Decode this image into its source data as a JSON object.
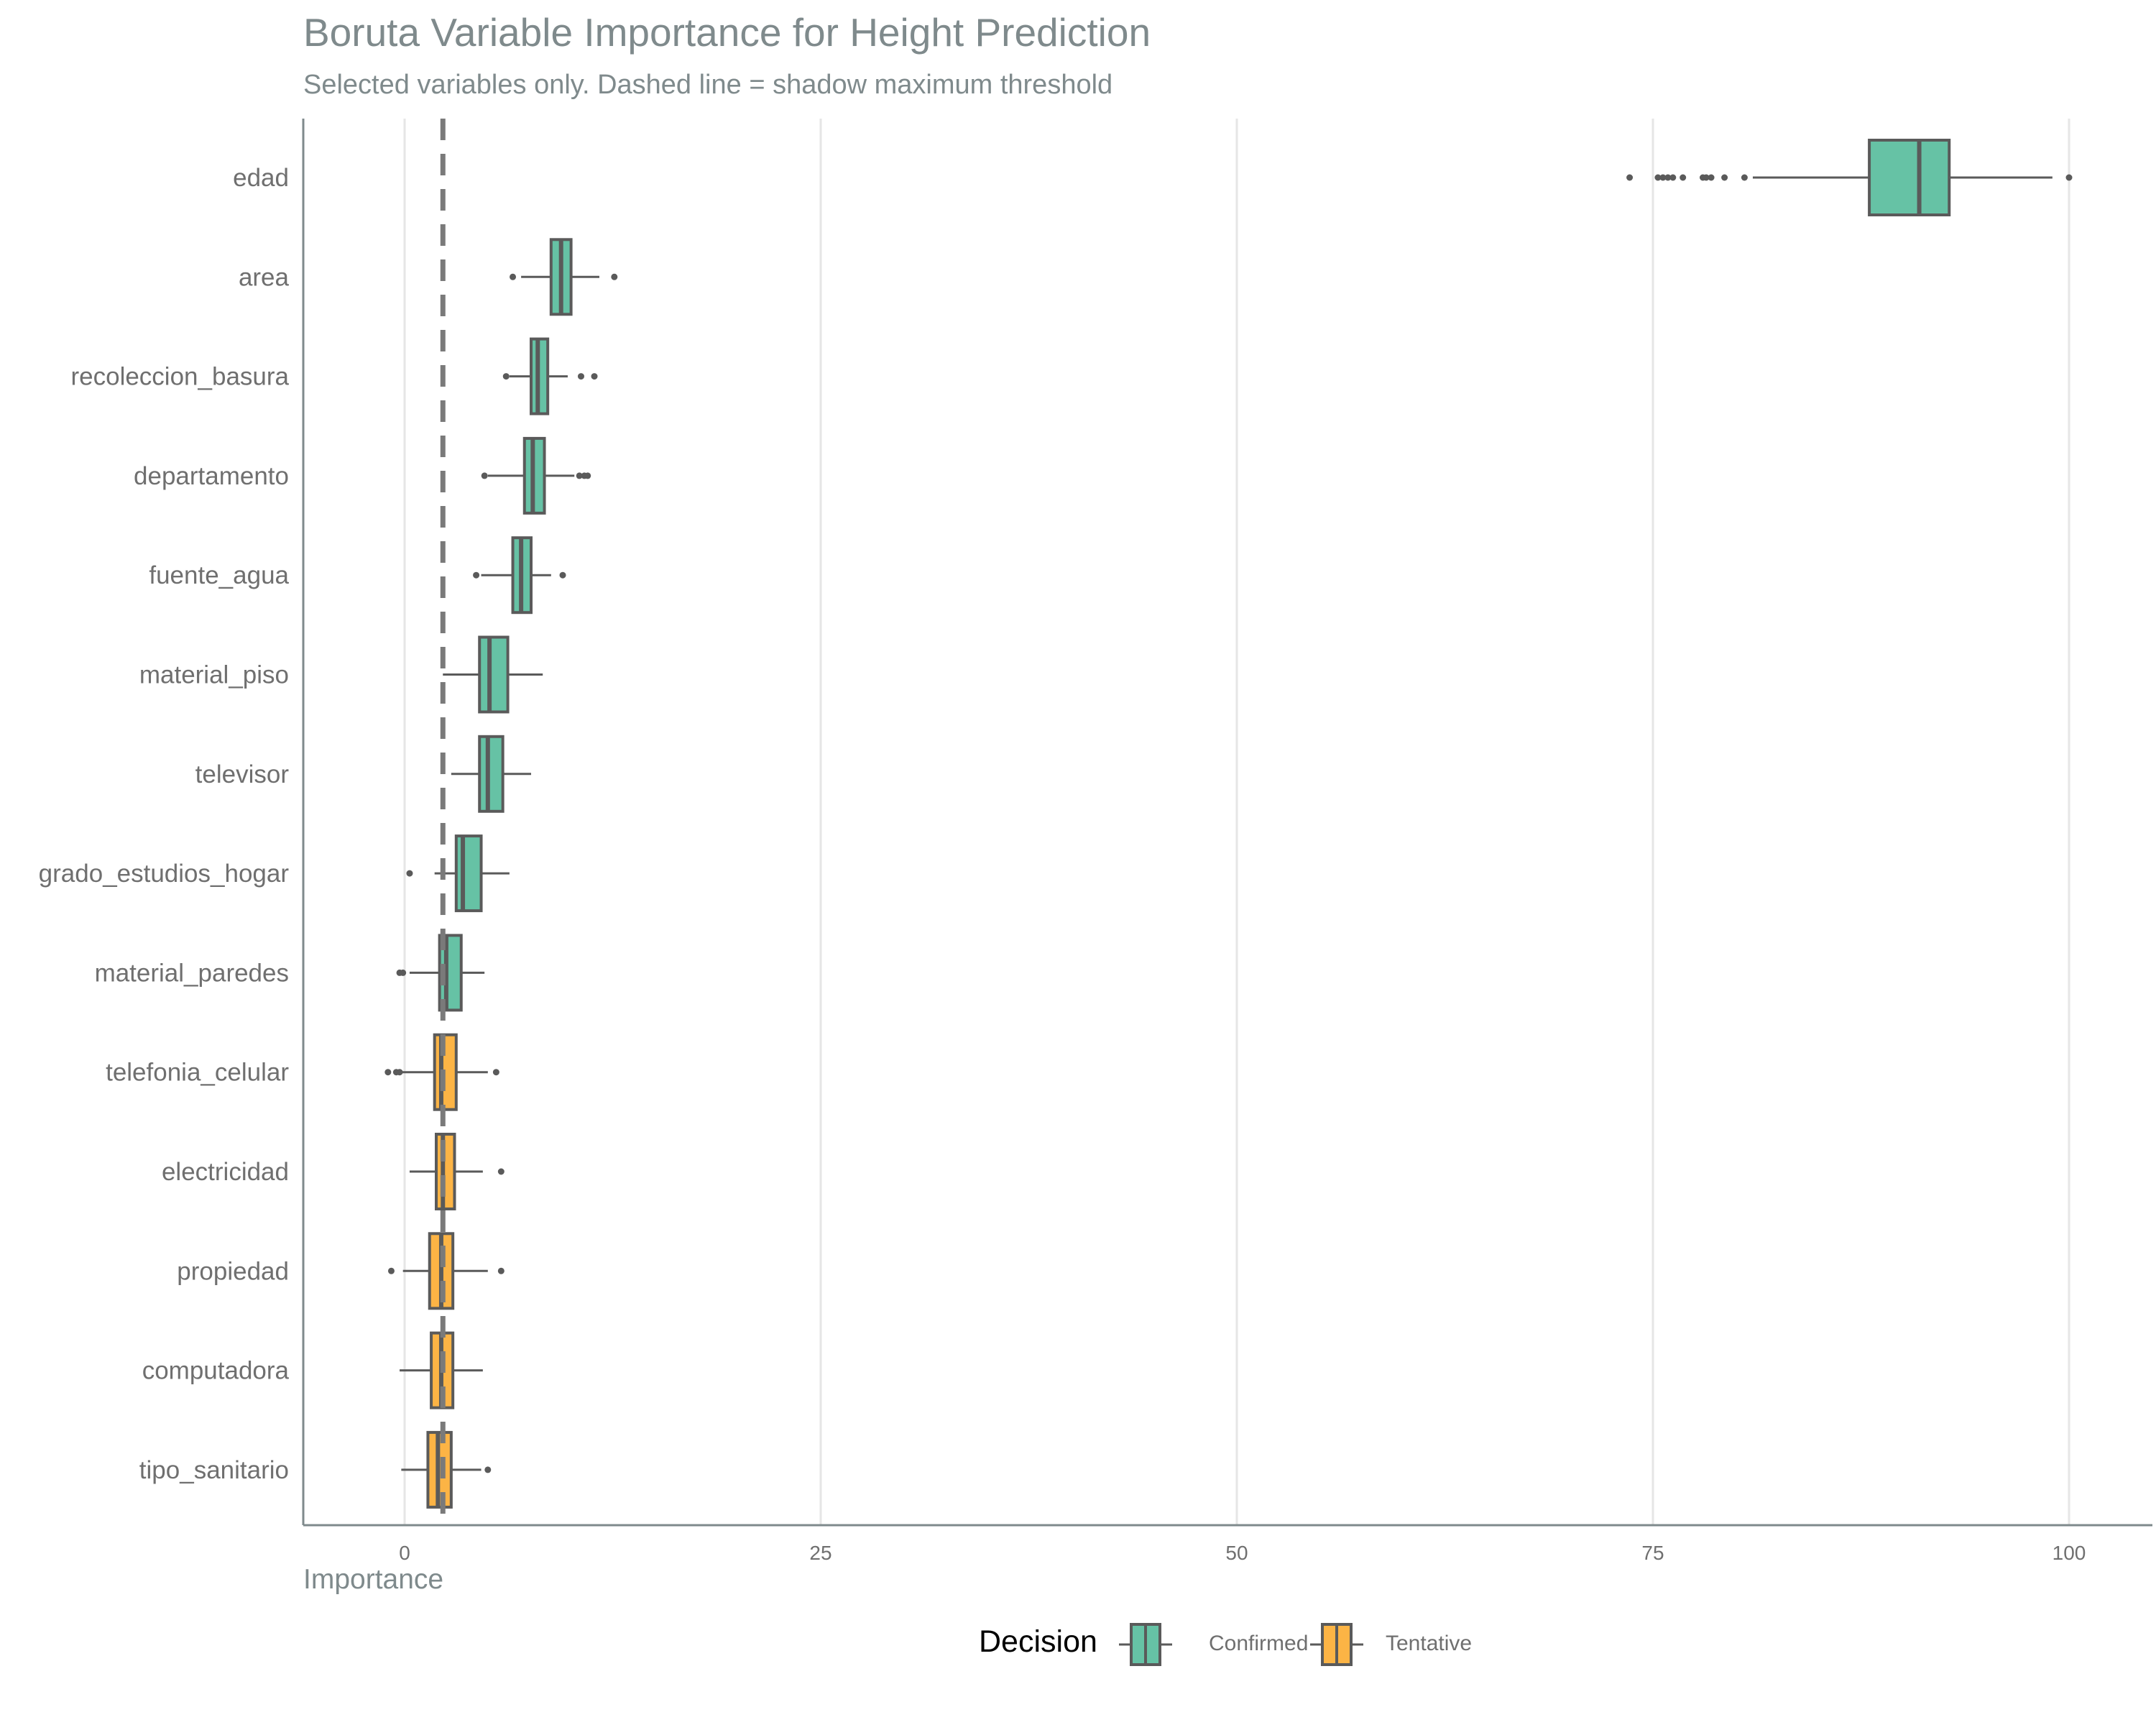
{
  "chart_data": {
    "type": "boxplot",
    "orientation": "horizontal",
    "title": "Boruta Variable Importance for Height Prediction",
    "subtitle": "Selected variables only. Dashed line = shadow maximum threshold",
    "xlabel": "Importance",
    "ylabel": "",
    "xlim": [
      -6,
      105
    ],
    "xticks": [
      0,
      25,
      50,
      75,
      100
    ],
    "grid": "vertical major",
    "legend": {
      "title": "Decision",
      "position": "bottom",
      "entries": [
        "Confirmed",
        "Tentative"
      ]
    },
    "colors": {
      "Confirmed": "#66c2a5",
      "Tentative": "#fcb445",
      "outline": "#5a5a5a",
      "grid": "#e6e6e6",
      "axis": "#7f8a8c"
    },
    "threshold": 2.3,
    "variables": [
      {
        "name": "edad",
        "decision": "Confirmed",
        "whisker_low": 81.0,
        "q1": 88.0,
        "median": 91.0,
        "q3": 92.8,
        "whisker_high": 99.0,
        "outliers": [
          73.6,
          75.3,
          75.6,
          75.9,
          76.2,
          76.8,
          78.0,
          78.2,
          78.5,
          79.3,
          80.5,
          100.0
        ]
      },
      {
        "name": "area",
        "decision": "Confirmed",
        "whisker_low": 7.0,
        "q1": 8.8,
        "median": 9.4,
        "q3": 10.0,
        "whisker_high": 11.7,
        "outliers": [
          6.5,
          12.6
        ]
      },
      {
        "name": "recoleccion_basura",
        "decision": "Confirmed",
        "whisker_low": 6.3,
        "q1": 7.6,
        "median": 8.0,
        "q3": 8.6,
        "whisker_high": 9.8,
        "outliers": [
          6.1,
          10.6,
          11.4
        ]
      },
      {
        "name": "departamento",
        "decision": "Confirmed",
        "whisker_low": 5.0,
        "q1": 7.2,
        "median": 7.7,
        "q3": 8.4,
        "whisker_high": 10.2,
        "outliers": [
          4.8,
          10.5,
          10.8,
          11.0
        ]
      },
      {
        "name": "fuente_agua",
        "decision": "Confirmed",
        "whisker_low": 4.6,
        "q1": 6.5,
        "median": 7.0,
        "q3": 7.6,
        "whisker_high": 8.8,
        "outliers": [
          4.3,
          9.5
        ]
      },
      {
        "name": "material_piso",
        "decision": "Confirmed",
        "whisker_low": 2.3,
        "q1": 4.5,
        "median": 5.1,
        "q3": 6.2,
        "whisker_high": 8.3,
        "outliers": []
      },
      {
        "name": "televisor",
        "decision": "Confirmed",
        "whisker_low": 2.8,
        "q1": 4.5,
        "median": 5.0,
        "q3": 5.9,
        "whisker_high": 7.6,
        "outliers": []
      },
      {
        "name": "grado_estudios_hogar",
        "decision": "Confirmed",
        "whisker_low": 1.8,
        "q1": 3.1,
        "median": 3.5,
        "q3": 4.6,
        "whisker_high": 6.3,
        "outliers": [
          0.3
        ]
      },
      {
        "name": "material_paredes",
        "decision": "Confirmed",
        "whisker_low": 0.3,
        "q1": 2.1,
        "median": 2.5,
        "q3": 3.4,
        "whisker_high": 4.8,
        "outliers": [
          -0.3,
          -0.1
        ]
      },
      {
        "name": "telefonia_celular",
        "decision": "Tentative",
        "whisker_low": -0.3,
        "q1": 1.8,
        "median": 2.2,
        "q3": 3.1,
        "whisker_high": 5.0,
        "outliers": [
          -1.0,
          -0.5,
          -0.3,
          5.5
        ]
      },
      {
        "name": "electricidad",
        "decision": "Tentative",
        "whisker_low": 0.3,
        "q1": 1.9,
        "median": 2.3,
        "q3": 3.0,
        "whisker_high": 4.7,
        "outliers": [
          5.8
        ]
      },
      {
        "name": "propiedad",
        "decision": "Tentative",
        "whisker_low": -0.1,
        "q1": 1.5,
        "median": 2.2,
        "q3": 2.9,
        "whisker_high": 5.0,
        "outliers": [
          -0.8,
          5.8
        ]
      },
      {
        "name": "computadora",
        "decision": "Tentative",
        "whisker_low": -0.3,
        "q1": 1.6,
        "median": 2.2,
        "q3": 2.9,
        "whisker_high": 4.7,
        "outliers": []
      },
      {
        "name": "tipo_sanitario",
        "decision": "Tentative",
        "whisker_low": -0.2,
        "q1": 1.4,
        "median": 2.0,
        "q3": 2.8,
        "whisker_high": 4.6,
        "outliers": [
          5.0
        ]
      }
    ]
  }
}
